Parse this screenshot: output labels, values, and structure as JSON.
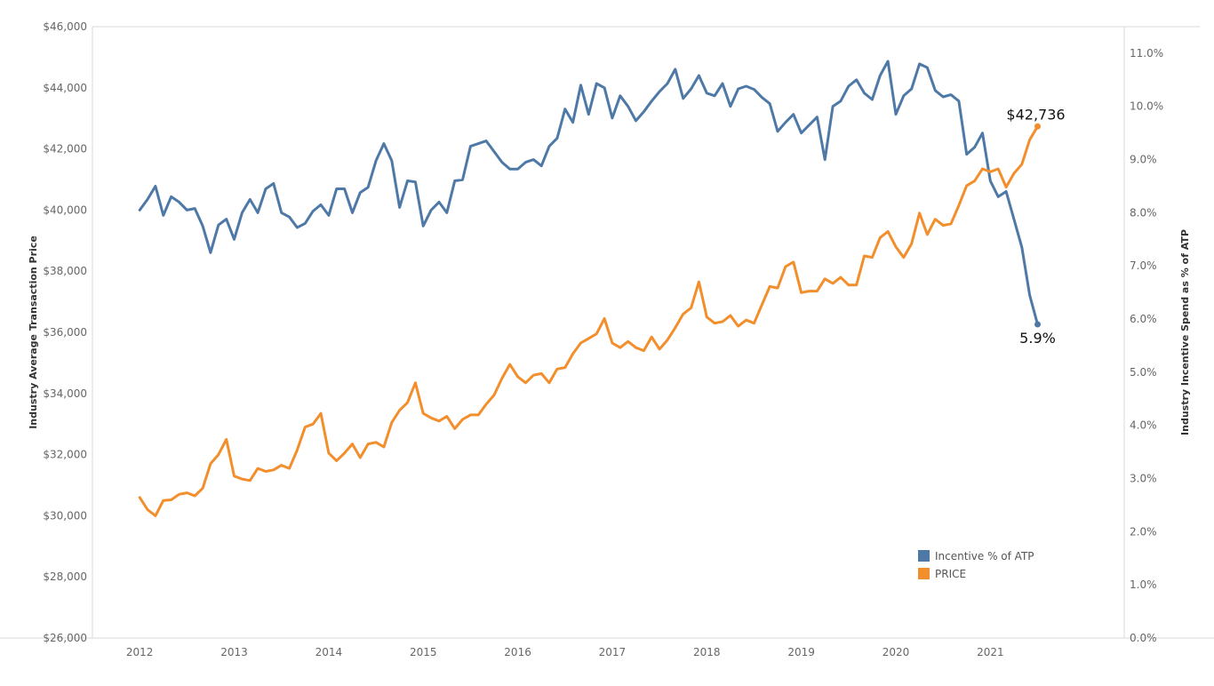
{
  "colors": {
    "incentive": "#4e79a7",
    "price": "#f28e2b",
    "axis": "#d9d9d9"
  },
  "chart_data": {
    "type": "line",
    "x_tick_labels": [
      "2012",
      "2013",
      "2014",
      "2015",
      "2016",
      "2017",
      "2018",
      "2019",
      "2020",
      "2021"
    ],
    "xlim": [
      "2011-07",
      "2022-06"
    ],
    "ylabel_left": "Industry Average Transaction Price",
    "ylabel_right": "Industry Incentive Spend as % of ATP",
    "ylim_left": [
      26000,
      46000
    ],
    "ylim_right": [
      0,
      11.5
    ],
    "left_tick_labels": [
      "$26,000",
      "$28,000",
      "$30,000",
      "$32,000",
      "$34,000",
      "$36,000",
      "$38,000",
      "$40,000",
      "$42,000",
      "$44,000",
      "$46,000"
    ],
    "left_tick_values": [
      26000,
      28000,
      30000,
      32000,
      34000,
      36000,
      38000,
      40000,
      42000,
      44000,
      46000
    ],
    "right_tick_labels": [
      "0.0%",
      "1.0%",
      "2.0%",
      "3.0%",
      "4.0%",
      "5.0%",
      "6.0%",
      "7.0%",
      "8.0%",
      "9.0%",
      "10.0%",
      "11.0%"
    ],
    "right_tick_values": [
      0,
      1,
      2,
      3,
      4,
      5,
      6,
      7,
      8,
      9,
      10,
      11
    ],
    "legend": {
      "position": "bottom-right",
      "entries": [
        "Incentive % of ATP",
        "PRICE"
      ]
    },
    "series": [
      {
        "name": "Incentive % of ATP",
        "axis": "right",
        "start": "2012-01",
        "end_label": "5.9%",
        "values": [
          8.05,
          8.25,
          8.5,
          7.95,
          8.3,
          8.2,
          8.05,
          8.08,
          7.75,
          7.25,
          7.77,
          7.88,
          7.5,
          8.0,
          8.25,
          8.0,
          8.45,
          8.55,
          8.0,
          7.92,
          7.72,
          7.8,
          8.03,
          8.15,
          7.95,
          8.45,
          8.45,
          8.0,
          8.38,
          8.48,
          8.98,
          9.3,
          8.98,
          8.1,
          8.6,
          8.58,
          7.75,
          8.05,
          8.2,
          8.0,
          8.6,
          8.62,
          9.25,
          9.3,
          9.35,
          9.15,
          8.95,
          8.82,
          8.82,
          8.95,
          9.0,
          8.88,
          9.25,
          9.4,
          9.95,
          9.7,
          10.4,
          9.85,
          10.43,
          10.35,
          9.78,
          10.2,
          10.0,
          9.73,
          9.9,
          10.1,
          10.28,
          10.43,
          10.7,
          10.15,
          10.33,
          10.58,
          10.25,
          10.2,
          10.43,
          10.0,
          10.33,
          10.38,
          10.32,
          10.17,
          10.05,
          9.53,
          9.7,
          9.85,
          9.5,
          9.65,
          9.8,
          9.0,
          10.0,
          10.1,
          10.38,
          10.5,
          10.25,
          10.13,
          10.58,
          10.85,
          9.85,
          10.2,
          10.33,
          10.8,
          10.73,
          10.3,
          10.18,
          10.22,
          10.1,
          9.1,
          9.23,
          9.5,
          8.6,
          8.3,
          8.4,
          7.88,
          7.35,
          6.45,
          5.9
        ]
      },
      {
        "name": "PRICE",
        "axis": "left",
        "start": "2012-01",
        "end_label": "$42,736",
        "values": [
          30600,
          30200,
          30000,
          30500,
          30520,
          30700,
          30750,
          30650,
          30900,
          31700,
          32000,
          32500,
          31300,
          31200,
          31150,
          31550,
          31450,
          31500,
          31650,
          31550,
          32150,
          32900,
          33000,
          33350,
          32050,
          31800,
          32050,
          32350,
          31900,
          32350,
          32400,
          32250,
          33050,
          33450,
          33700,
          34350,
          33350,
          33200,
          33100,
          33250,
          32850,
          33150,
          33300,
          33300,
          33650,
          33950,
          34500,
          34950,
          34550,
          34350,
          34600,
          34650,
          34350,
          34800,
          34850,
          35300,
          35650,
          35800,
          35950,
          36450,
          35650,
          35500,
          35700,
          35500,
          35400,
          35850,
          35450,
          35750,
          36150,
          36600,
          36800,
          37650,
          36500,
          36300,
          36350,
          36550,
          36200,
          36400,
          36300,
          36900,
          37500,
          37450,
          38150,
          38300,
          37300,
          37350,
          37350,
          37750,
          37600,
          37800,
          37550,
          37550,
          38500,
          38450,
          39100,
          39300,
          38800,
          38450,
          38900,
          39900,
          39200,
          39700,
          39500,
          39550,
          40150,
          40800,
          40950,
          41350,
          41250,
          41350,
          40750,
          41200,
          41500,
          42300,
          42736
        ]
      }
    ]
  }
}
